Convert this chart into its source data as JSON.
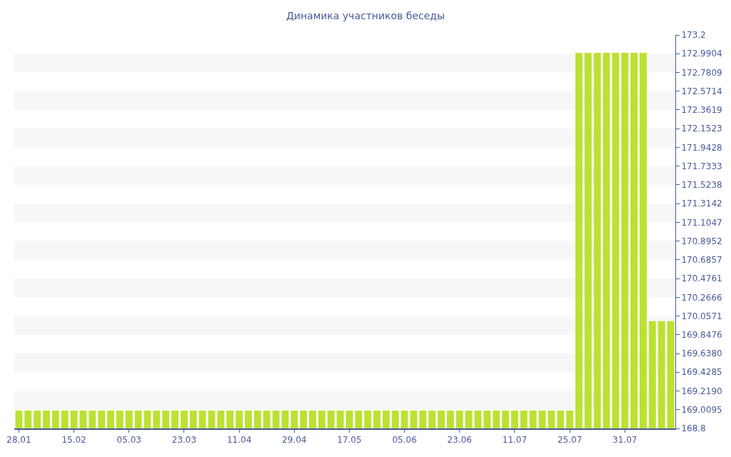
{
  "chart_data": {
    "type": "bar",
    "title": "Динамика участников беседы",
    "categories": [
      "28.01",
      null,
      null,
      null,
      null,
      null,
      "15.02",
      null,
      null,
      null,
      null,
      null,
      "05.03",
      null,
      null,
      null,
      null,
      null,
      "23.03",
      null,
      null,
      null,
      null,
      null,
      "11.04",
      null,
      null,
      null,
      null,
      null,
      "29.04",
      null,
      null,
      null,
      null,
      null,
      "17.05",
      null,
      null,
      null,
      null,
      null,
      "05.06",
      null,
      null,
      null,
      null,
      null,
      "23.06",
      null,
      null,
      null,
      null,
      null,
      "11.07",
      null,
      null,
      null,
      null,
      null,
      "25.07",
      null,
      null,
      null,
      null,
      null,
      "31.07",
      null,
      null,
      null,
      null,
      null
    ],
    "values": [
      169,
      169,
      169,
      169,
      169,
      169,
      169,
      169,
      169,
      169,
      169,
      169,
      169,
      169,
      169,
      169,
      169,
      169,
      169,
      169,
      169,
      169,
      169,
      169,
      169,
      169,
      169,
      169,
      169,
      169,
      169,
      169,
      169,
      169,
      169,
      169,
      169,
      169,
      169,
      169,
      169,
      169,
      169,
      169,
      169,
      169,
      169,
      169,
      169,
      169,
      169,
      169,
      169,
      169,
      169,
      169,
      169,
      169,
      169,
      169,
      169,
      173,
      173,
      173,
      173,
      173,
      173,
      173,
      173,
      170,
      170,
      170
    ],
    "color": "#bce132",
    "ylim": [
      168.8,
      173.2
    ],
    "yticks": [
      168.8,
      169.0095,
      {
        "value": 169.219,
        "label": "169.2190"
      },
      169.4285,
      {
        "value": 169.638,
        "label": "169.6380"
      },
      169.8476,
      170.0571,
      170.2666,
      170.4761,
      170.6857,
      170.8952,
      171.1047,
      171.3142,
      171.5238,
      171.7333,
      171.9428,
      172.1523,
      172.3619,
      172.5714,
      172.7809,
      172.9904,
      173.2
    ],
    "bands": [
      {
        "axis": "y",
        "from": 169.0095,
        "to": 169.219,
        "color": "#f7f7f7"
      },
      {
        "axis": "y",
        "from": 169.4285,
        "to": 169.638,
        "color": "#f7f7f7"
      },
      {
        "axis": "y",
        "from": 169.8476,
        "to": 170.0571,
        "color": "#f7f7f7"
      },
      {
        "axis": "y",
        "from": 170.2666,
        "to": 170.4761,
        "color": "#f7f7f7"
      },
      {
        "axis": "y",
        "from": 170.6857,
        "to": 170.8952,
        "color": "#f7f7f7"
      },
      {
        "axis": "y",
        "from": 171.1047,
        "to": 171.3142,
        "color": "#f7f7f7"
      },
      {
        "axis": "y",
        "from": 171.5238,
        "to": 171.7333,
        "color": "#f7f7f7"
      },
      {
        "axis": "y",
        "from": 171.9428,
        "to": 172.1523,
        "color": "#f7f7f7"
      },
      {
        "axis": "y",
        "from": 172.3619,
        "to": 172.5714,
        "color": "#f7f7f7"
      },
      {
        "axis": "y",
        "from": 172.7809,
        "to": 172.9904,
        "color": "#f7f7f7"
      }
    ]
  }
}
